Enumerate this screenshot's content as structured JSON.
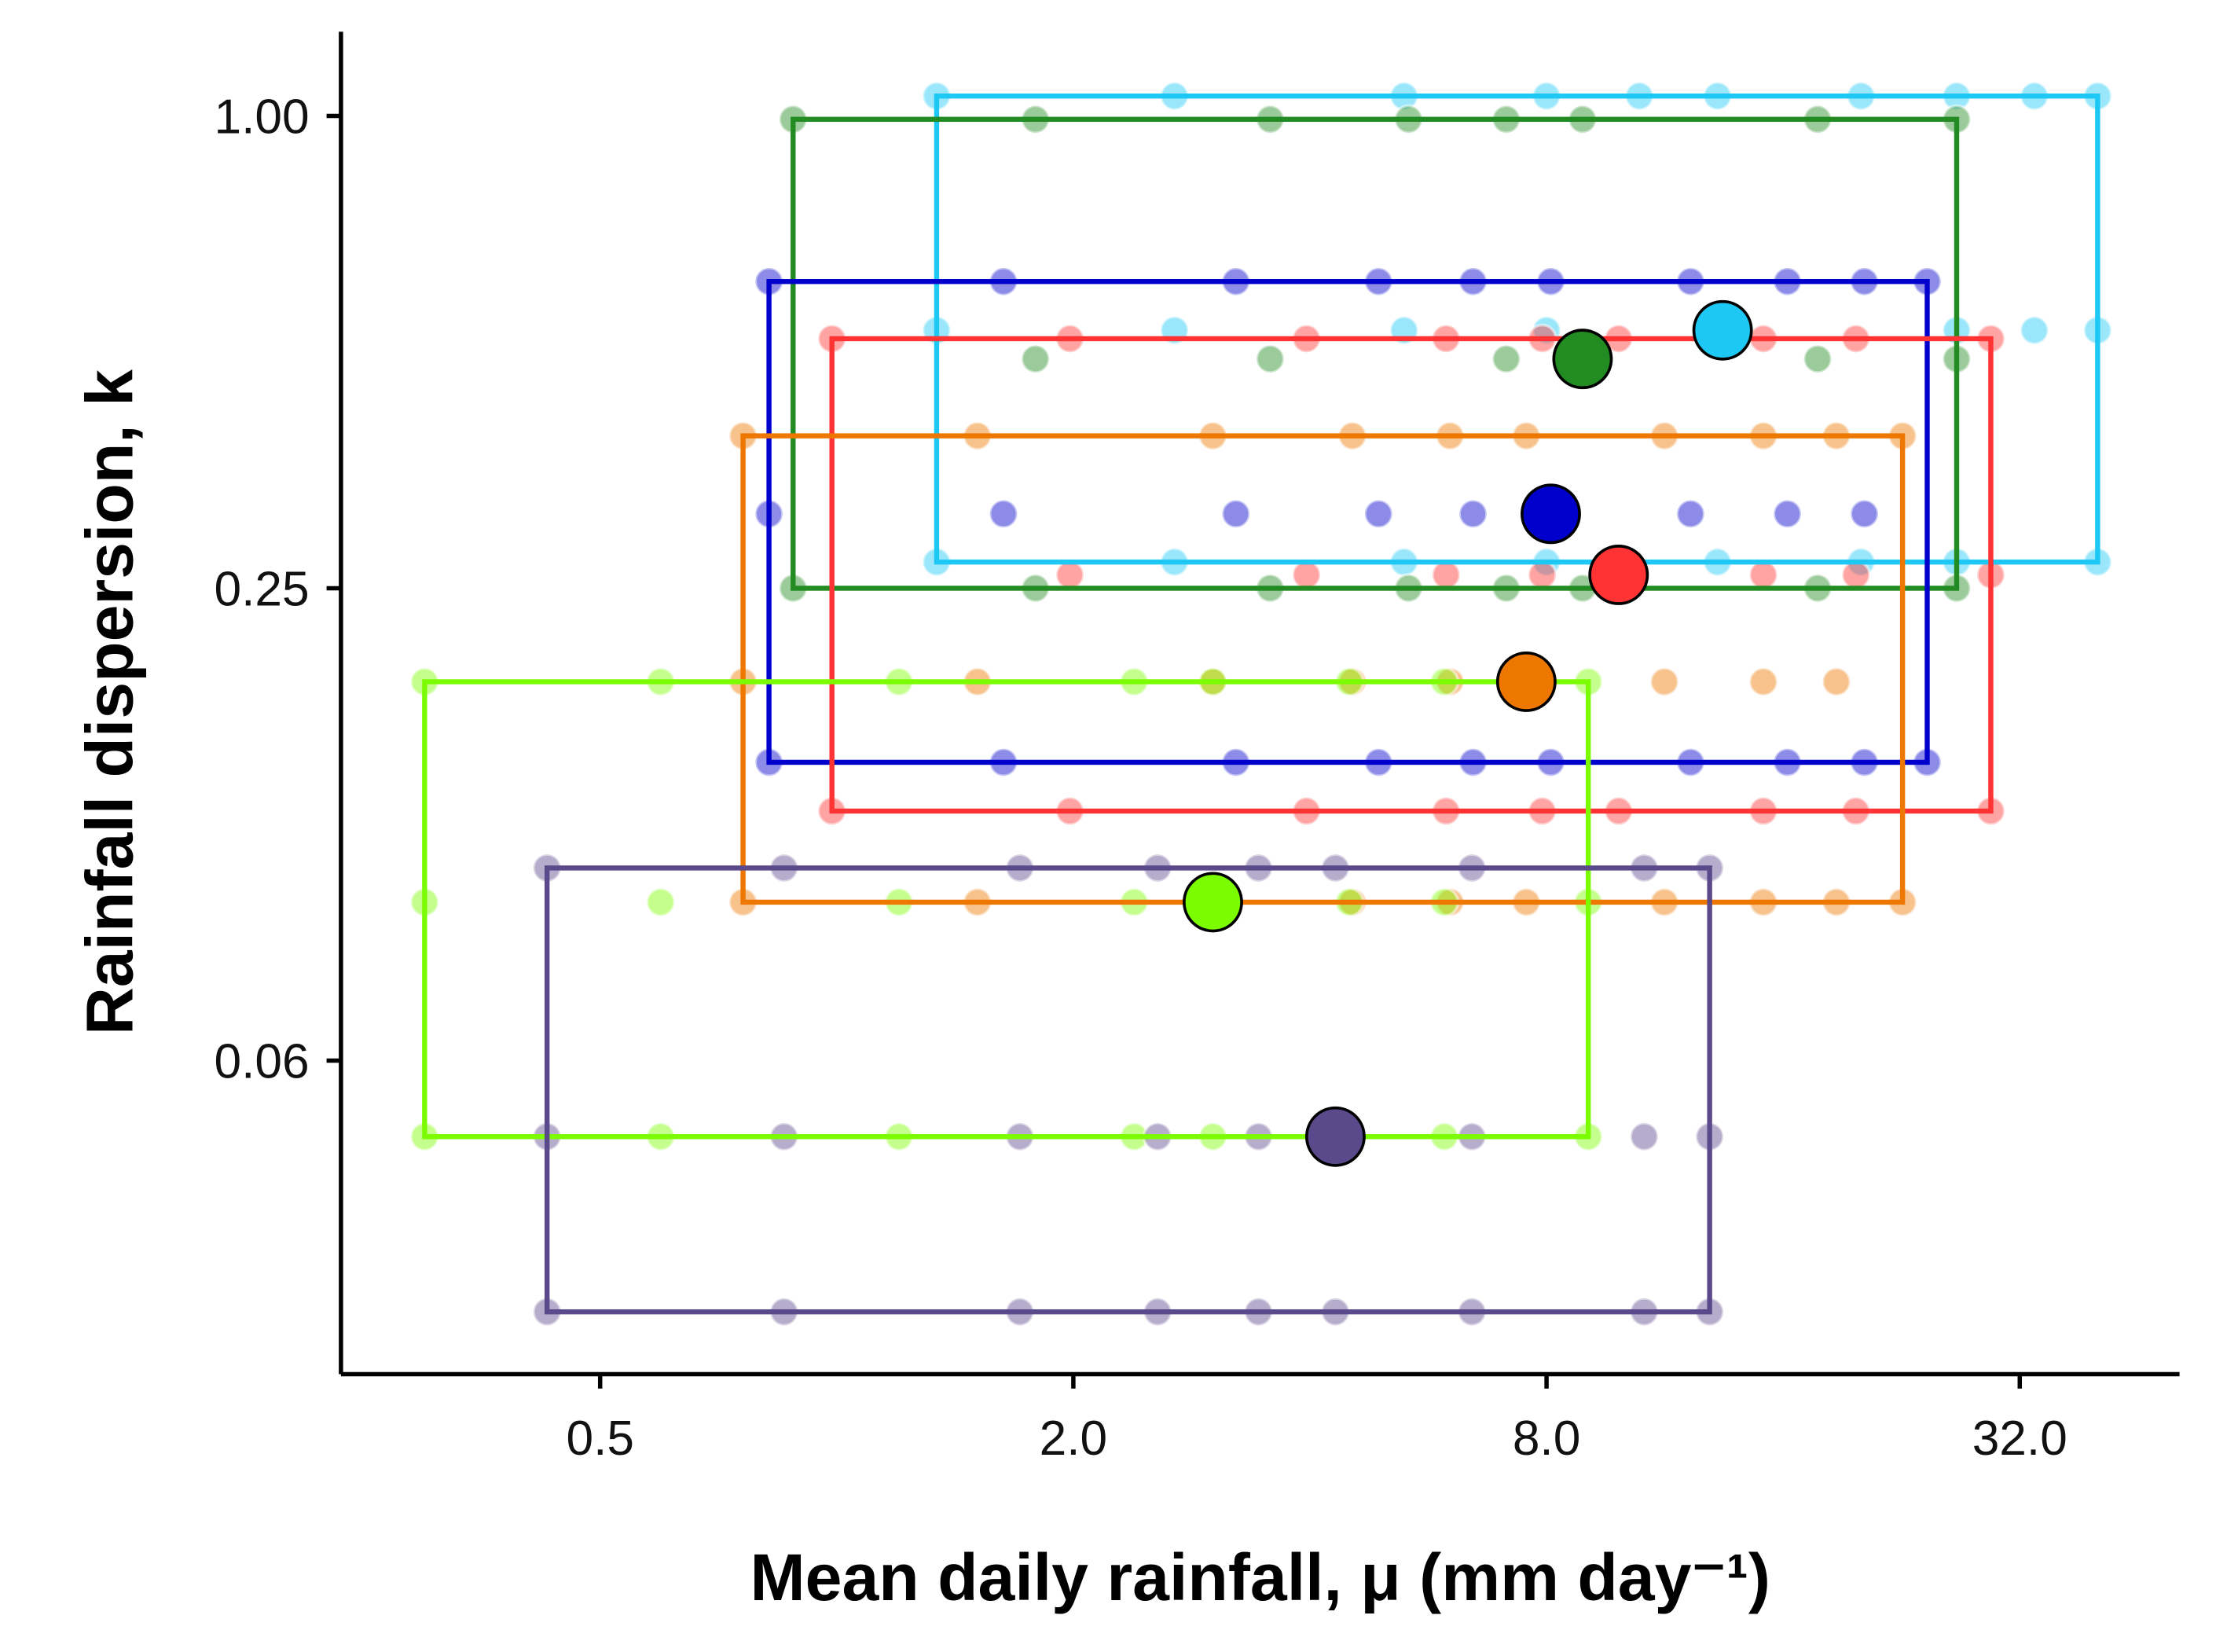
{
  "chart_data": {
    "type": "scatter",
    "x_label": "Mean daily rainfall, μ (mm  day⁻¹)",
    "y_label": "Rainfall dispersion, k",
    "xscale": "log",
    "yscale": "log",
    "xlim": [
      0.234,
      51.1
    ],
    "ylim": [
      0.0249,
      1.28
    ],
    "xticks": [
      0.5,
      {
        "value": 2,
        "label": "2.0"
      },
      {
        "value": 8,
        "label": "8.0"
      },
      {
        "value": 32,
        "label": "32.0"
      }
    ],
    "yticks": [
      {
        "value": 1,
        "label": "1.00"
      },
      0.25,
      {
        "value": 0.0625,
        "label": "0.06"
      }
    ],
    "series": [
      {
        "color": "#1ec8f5",
        "mean_x": 13.4,
        "mean_y": 0.533,
        "x": [
          1.34,
          2.69,
          5.27,
          8.0,
          10.5,
          13.2,
          20.1,
          26.6,
          33.4,
          40.2,
          1.34,
          2.69,
          5.27,
          8.0,
          13.2,
          26.6,
          33.4,
          40.2,
          1.34,
          2.69,
          5.27,
          8.0,
          13.2,
          20.1,
          26.6,
          40.2
        ],
        "values": [
          1.06,
          1.06,
          1.06,
          1.06,
          1.06,
          1.06,
          1.06,
          1.06,
          1.06,
          1.06,
          0.533,
          0.533,
          0.533,
          0.533,
          0.533,
          0.533,
          0.533,
          0.533,
          0.27,
          0.27,
          0.27,
          0.27,
          0.27,
          0.27,
          0.27,
          0.27
        ]
      },
      {
        "color": "#228b22",
        "mean_x": 8.89,
        "mean_y": 0.49,
        "x": [
          0.88,
          1.79,
          3.56,
          5.34,
          7.11,
          8.89,
          17.7,
          26.6,
          1.79,
          3.56,
          7.11,
          8.89,
          17.7,
          26.6,
          0.88,
          1.79,
          3.56,
          5.34,
          7.11,
          8.89,
          17.7,
          26.6
        ],
        "values": [
          0.99,
          0.99,
          0.99,
          0.99,
          0.99,
          0.99,
          0.99,
          0.99,
          0.49,
          0.49,
          0.49,
          0.49,
          0.49,
          0.49,
          0.25,
          0.25,
          0.25,
          0.25,
          0.25,
          0.25,
          0.25,
          0.25
        ]
      },
      {
        "color": "#0000cd",
        "mean_x": 8.1,
        "mean_y": 0.311,
        "x": [
          0.82,
          1.63,
          3.22,
          4.89,
          6.45,
          8.1,
          12.2,
          16.2,
          20.3,
          24.4,
          0.82,
          1.63,
          3.22,
          4.89,
          6.45,
          12.2,
          16.2,
          20.3,
          0.82,
          1.63,
          3.22,
          4.89,
          6.45,
          8.1,
          12.2,
          16.2,
          20.3,
          24.4
        ],
        "values": [
          0.615,
          0.615,
          0.615,
          0.615,
          0.615,
          0.615,
          0.615,
          0.615,
          0.615,
          0.615,
          0.311,
          0.311,
          0.311,
          0.311,
          0.311,
          0.311,
          0.311,
          0.311,
          0.15,
          0.15,
          0.15,
          0.15,
          0.15,
          0.15,
          0.15,
          0.15,
          0.15,
          0.15
        ]
      },
      {
        "color": "#ff3333",
        "mean_x": 9.88,
        "mean_y": 0.26,
        "x": [
          0.986,
          1.98,
          3.96,
          5.96,
          7.9,
          9.88,
          15.1,
          19.8,
          29.4,
          1.98,
          3.96,
          5.96,
          7.9,
          15.1,
          19.8,
          29.4,
          0.986,
          1.98,
          3.96,
          5.96,
          7.9,
          9.88,
          15.1,
          19.8,
          29.4
        ],
        "values": [
          0.52,
          0.52,
          0.52,
          0.52,
          0.52,
          0.52,
          0.52,
          0.52,
          0.52,
          0.26,
          0.26,
          0.26,
          0.26,
          0.26,
          0.26,
          0.26,
          0.13,
          0.13,
          0.13,
          0.13,
          0.13,
          0.13,
          0.13,
          0.13,
          0.13
        ]
      },
      {
        "color": "#ee7700",
        "mean_x": 7.54,
        "mean_y": 0.19,
        "x": [
          0.76,
          1.51,
          3.01,
          4.53,
          6.03,
          7.54,
          11.3,
          15.1,
          18.7,
          22.7,
          0.76,
          1.51,
          3.01,
          4.53,
          6.03,
          11.3,
          15.1,
          18.7,
          0.76,
          1.51,
          3.01,
          4.53,
          6.03,
          7.54,
          11.3,
          15.1,
          18.7,
          22.7
        ],
        "values": [
          0.391,
          0.391,
          0.391,
          0.391,
          0.391,
          0.391,
          0.391,
          0.391,
          0.391,
          0.391,
          0.19,
          0.19,
          0.19,
          0.19,
          0.19,
          0.19,
          0.19,
          0.19,
          0.0995,
          0.0995,
          0.0995,
          0.0995,
          0.0995,
          0.0995,
          0.0995,
          0.0995,
          0.0995,
          0.0995
        ]
      },
      {
        "color": "#7cfc00",
        "mean_x": 3.01,
        "mean_y": 0.0995,
        "x": [
          0.299,
          0.597,
          1.2,
          2.39,
          3.01,
          4.49,
          5.93,
          9.04,
          0.299,
          0.597,
          1.2,
          2.39,
          4.49,
          5.93,
          9.04,
          0.299,
          0.597,
          1.2,
          2.39,
          3.01,
          4.49,
          5.93,
          9.04
        ],
        "values": [
          0.19,
          0.19,
          0.19,
          0.19,
          0.19,
          0.19,
          0.19,
          0.19,
          0.0995,
          0.0995,
          0.0995,
          0.0995,
          0.0995,
          0.0995,
          0.0995,
          0.05,
          0.05,
          0.05,
          0.05,
          0.05,
          0.05,
          0.05,
          0.05
        ]
      },
      {
        "color": "#5b4a8b",
        "mean_x": 4.31,
        "mean_y": 0.05,
        "x": [
          0.428,
          0.857,
          1.71,
          2.56,
          3.44,
          4.31,
          6.43,
          10.65,
          12.9,
          0.428,
          0.857,
          1.71,
          2.56,
          3.44,
          6.43,
          10.65,
          12.9,
          0.428,
          0.857,
          1.71,
          2.56,
          3.44,
          4.31,
          6.43,
          10.65,
          12.9
        ],
        "values": [
          0.11,
          0.11,
          0.11,
          0.11,
          0.11,
          0.11,
          0.11,
          0.11,
          0.11,
          0.05,
          0.05,
          0.05,
          0.05,
          0.05,
          0.05,
          0.05,
          0.05,
          0.0299,
          0.0299,
          0.0299,
          0.0299,
          0.0299,
          0.0299,
          0.0299,
          0.0299,
          0.0299
        ]
      }
    ]
  }
}
